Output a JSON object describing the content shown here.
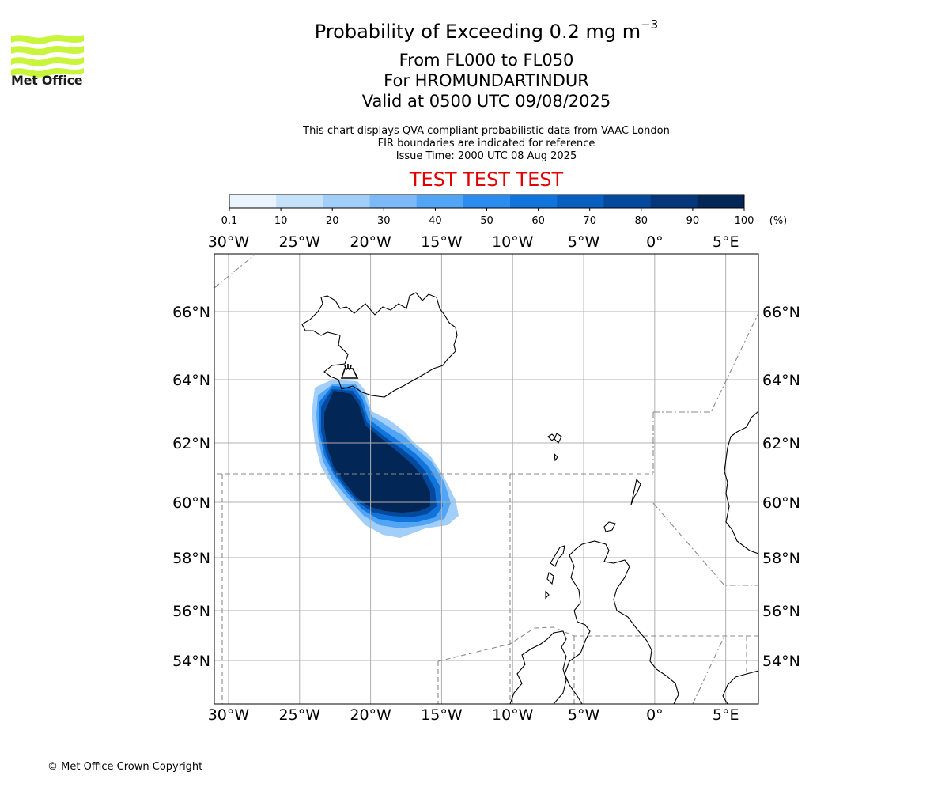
{
  "header": {
    "title_main": "Probability of Exceeding 0.2 mg m",
    "title_sup": "−3",
    "line2": "From FL000 to FL050",
    "line3": "For HROMUNDARTINDUR",
    "line4": "Valid at 0500 UTC 09/08/2025",
    "note1": "This chart displays QVA compliant probabilistic data from VAAC London",
    "note2": "FIR boundaries are indicated for reference",
    "note3": "Issue Time: 2000 UTC 08 Aug 2025",
    "test_banner": "TEST TEST TEST"
  },
  "logo": {
    "text": "Met Office",
    "color": "#c8f53c"
  },
  "footer": {
    "copyright": "© Met Office Crown Copyright"
  },
  "colorbar": {
    "ticks": [
      "0.1",
      "10",
      "20",
      "30",
      "40",
      "50",
      "60",
      "70",
      "80",
      "90",
      "100"
    ],
    "unit": "(%)",
    "colors": [
      "#eaf4fe",
      "#c6e2fb",
      "#a2cffa",
      "#7bbaf7",
      "#52a4f4",
      "#2a8cee",
      "#0f74dc",
      "#075fbf",
      "#04499c",
      "#03367a",
      "#022656"
    ]
  },
  "map": {
    "lon_range": [
      -31,
      7.3
    ],
    "lon_ticks": [
      -30,
      -25,
      -20,
      -15,
      -10,
      -5,
      0,
      5
    ],
    "lon_labels": [
      "30°W",
      "25°W",
      "20°W",
      "15°W",
      "10°W",
      "5°W",
      "0°",
      "5°E"
    ],
    "lat_ticks": [
      66,
      64,
      62,
      60,
      58,
      56,
      54
    ],
    "lat_labels": [
      "66°N",
      "64°N",
      "62°N",
      "60°N",
      "58°N",
      "56°N",
      "54°N"
    ],
    "grid": true,
    "volcano_name": "HROMUNDARTINDUR",
    "ash_plume_levels_pct": [
      10,
      30,
      50,
      70,
      90,
      100
    ]
  }
}
